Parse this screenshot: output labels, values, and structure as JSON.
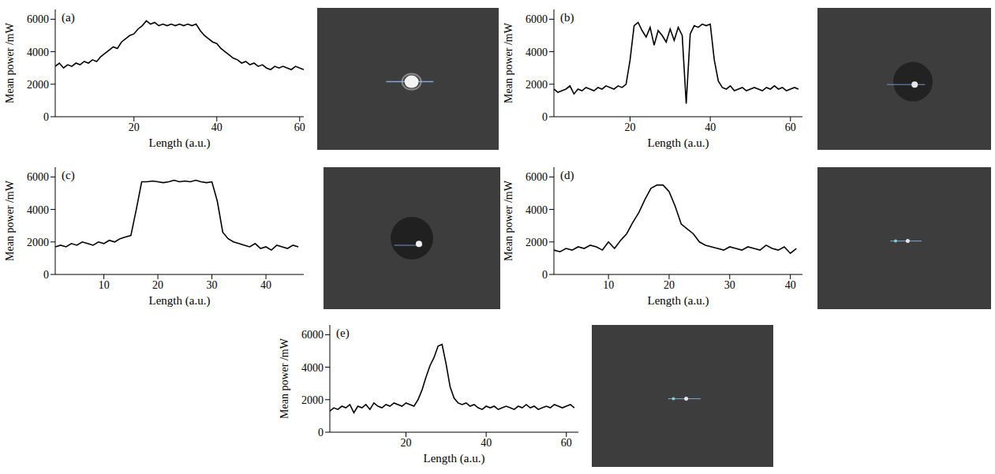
{
  "chart_data": [
    {
      "type": "line",
      "panel_label": "(a)",
      "x_label": "Length (a.u.)",
      "y_label": "Mean power /mW",
      "color": "#000000",
      "xlim": [
        1,
        61
      ],
      "xticks": [
        20,
        40,
        60
      ],
      "ylim": [
        0,
        6600
      ],
      "yticks": [
        0,
        2000,
        4000,
        6000
      ],
      "x": [
        1,
        2,
        3,
        4,
        5,
        6,
        7,
        8,
        9,
        10,
        11,
        12,
        13,
        14,
        15,
        16,
        17,
        18,
        19,
        20,
        21,
        22,
        23,
        24,
        25,
        26,
        27,
        28,
        29,
        30,
        31,
        32,
        33,
        34,
        35,
        36,
        37,
        38,
        39,
        40,
        41,
        42,
        43,
        44,
        45,
        46,
        47,
        48,
        49,
        50,
        51,
        52,
        53,
        54,
        55,
        56,
        57,
        58,
        59,
        60,
        61
      ],
      "values": [
        3100,
        3300,
        3000,
        3200,
        3100,
        3300,
        3200,
        3400,
        3300,
        3500,
        3400,
        3700,
        3900,
        4100,
        4300,
        4200,
        4600,
        4800,
        5000,
        5100,
        5400,
        5600,
        5900,
        5700,
        5800,
        5600,
        5700,
        5600,
        5700,
        5600,
        5700,
        5600,
        5700,
        5600,
        5700,
        5300,
        5000,
        4800,
        4600,
        4500,
        4200,
        4000,
        3800,
        3600,
        3500,
        3300,
        3400,
        3200,
        3300,
        3100,
        3200,
        3000,
        2900,
        3100,
        3000,
        3100,
        3000,
        2900,
        3100,
        3000,
        2900
      ]
    },
    {
      "type": "line",
      "panel_label": "(b)",
      "x_label": "Length (a.u.)",
      "y_label": "Mean power /mW",
      "color": "#000000",
      "xlim": [
        1,
        63
      ],
      "xticks": [
        20,
        40,
        60
      ],
      "ylim": [
        0,
        6600
      ],
      "yticks": [
        0,
        2000,
        4000,
        6000
      ],
      "x": [
        1,
        2,
        3,
        4,
        5,
        6,
        7,
        8,
        9,
        10,
        11,
        12,
        13,
        14,
        15,
        16,
        17,
        18,
        19,
        20,
        21,
        22,
        23,
        24,
        25,
        26,
        27,
        28,
        29,
        30,
        31,
        32,
        33,
        34,
        35,
        36,
        37,
        38,
        39,
        40,
        41,
        42,
        43,
        44,
        45,
        46,
        47,
        48,
        49,
        50,
        51,
        52,
        53,
        54,
        55,
        56,
        57,
        58,
        59,
        60,
        61,
        62
      ],
      "values": [
        1700,
        1500,
        1600,
        1700,
        1900,
        1400,
        1700,
        1600,
        1800,
        1700,
        1600,
        1800,
        1700,
        1900,
        1800,
        1700,
        1900,
        1800,
        2000,
        3500,
        5600,
        5800,
        5300,
        4900,
        5500,
        4400,
        5300,
        5000,
        4600,
        5400,
        4700,
        5500,
        5000,
        800,
        5100,
        5600,
        5500,
        5700,
        5600,
        5700,
        3500,
        2200,
        1800,
        1700,
        1900,
        1600,
        1700,
        1800,
        1600,
        1700,
        1800,
        1700,
        1600,
        1800,
        1700,
        1900,
        1700,
        1800,
        1600,
        1700,
        1800,
        1700
      ]
    },
    {
      "type": "line",
      "panel_label": "(c)",
      "x_label": "Length (a.u.)",
      "y_label": "Mean power /mW",
      "color": "#000000",
      "xlim": [
        1,
        47
      ],
      "xticks": [
        10,
        20,
        30,
        40
      ],
      "ylim": [
        0,
        6600
      ],
      "yticks": [
        0,
        2000,
        4000,
        6000
      ],
      "x": [
        1,
        2,
        3,
        4,
        5,
        6,
        7,
        8,
        9,
        10,
        11,
        12,
        13,
        14,
        15,
        16,
        17,
        18,
        19,
        20,
        21,
        22,
        23,
        24,
        25,
        26,
        27,
        28,
        29,
        30,
        31,
        32,
        33,
        34,
        35,
        36,
        37,
        38,
        39,
        40,
        41,
        42,
        43,
        44,
        45,
        46
      ],
      "values": [
        1700,
        1800,
        1700,
        1900,
        1800,
        2000,
        1900,
        1800,
        2000,
        1900,
        2100,
        2000,
        2200,
        2300,
        2400,
        4000,
        5700,
        5700,
        5750,
        5700,
        5650,
        5700,
        5800,
        5700,
        5750,
        5700,
        5800,
        5700,
        5650,
        5700,
        4500,
        2600,
        2200,
        2000,
        1900,
        1800,
        1700,
        1900,
        1600,
        1700,
        1500,
        1800,
        1700,
        1600,
        1800,
        1700
      ]
    },
    {
      "type": "line",
      "panel_label": "(d)",
      "x_label": "Length (a.u.)",
      "y_label": "Mean power /mW",
      "color": "#000000",
      "xlim": [
        1,
        42
      ],
      "xticks": [
        10,
        20,
        30,
        40
      ],
      "ylim": [
        0,
        6600
      ],
      "yticks": [
        0,
        2000,
        4000,
        6000
      ],
      "x": [
        1,
        2,
        3,
        4,
        5,
        6,
        7,
        8,
        9,
        10,
        11,
        12,
        13,
        14,
        15,
        16,
        17,
        18,
        19,
        20,
        21,
        22,
        23,
        24,
        25,
        26,
        27,
        28,
        29,
        30,
        31,
        32,
        33,
        34,
        35,
        36,
        37,
        38,
        39,
        40,
        41
      ],
      "values": [
        1500,
        1400,
        1600,
        1500,
        1700,
        1600,
        1800,
        1700,
        1500,
        2000,
        1600,
        2100,
        2500,
        3200,
        3800,
        4600,
        5300,
        5500,
        5500,
        5100,
        4200,
        3100,
        2800,
        2500,
        2000,
        1800,
        1700,
        1600,
        1500,
        1700,
        1600,
        1500,
        1700,
        1600,
        1500,
        1800,
        1600,
        1500,
        1700,
        1300,
        1600
      ]
    },
    {
      "type": "line",
      "panel_label": "(e)",
      "x_label": "Length (a.u.)",
      "y_label": "Mean power /mW",
      "color": "#000000",
      "xlim": [
        1,
        63
      ],
      "xticks": [
        20,
        40,
        60
      ],
      "ylim": [
        0,
        6600
      ],
      "yticks": [
        0,
        2000,
        4000,
        6000
      ],
      "x": [
        1,
        2,
        3,
        4,
        5,
        6,
        7,
        8,
        9,
        10,
        11,
        12,
        13,
        14,
        15,
        16,
        17,
        18,
        19,
        20,
        21,
        22,
        23,
        24,
        25,
        26,
        27,
        28,
        29,
        30,
        31,
        32,
        33,
        34,
        35,
        36,
        37,
        38,
        39,
        40,
        41,
        42,
        43,
        44,
        45,
        46,
        47,
        48,
        49,
        50,
        51,
        52,
        53,
        54,
        55,
        56,
        57,
        58,
        59,
        60,
        61,
        62
      ],
      "values": [
        1300,
        1500,
        1400,
        1600,
        1500,
        1700,
        1200,
        1600,
        1500,
        1700,
        1400,
        1800,
        1600,
        1500,
        1700,
        1600,
        1800,
        1700,
        1600,
        1800,
        1700,
        1600,
        2000,
        2600,
        3400,
        4100,
        4600,
        5300,
        5400,
        4200,
        2800,
        2100,
        1800,
        1700,
        1800,
        1600,
        1700,
        1500,
        1400,
        1600,
        1500,
        1600,
        1400,
        1500,
        1600,
        1500,
        1400,
        1600,
        1500,
        1700,
        1500,
        1600,
        1400,
        1500,
        1600,
        1500,
        1700,
        1600,
        1500,
        1600,
        1700,
        1500
      ]
    }
  ]
}
